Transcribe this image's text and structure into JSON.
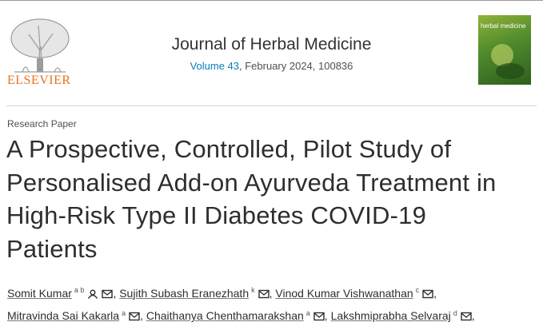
{
  "header": {
    "publisher": "ELSEVIER",
    "journal": "Journal of Herbal Medicine",
    "volume": "Volume 43",
    "issue_info": ", February 2024, 100836",
    "cover_title": "herbal medicine"
  },
  "article": {
    "type": "Research Paper",
    "title_lines": [
      "A Prospective, Controlled, Pilot Study of",
      "Personalised Add-on Ayurveda Treatment in",
      "High-Risk Type II Diabetes COVID-19",
      "Patients"
    ],
    "separator": ",",
    "authors": [
      {
        "name": "Somit Kumar",
        "affiliations": "a b",
        "profile_icon": true
      },
      {
        "name": "Sujith Subash Eranezhath",
        "affiliations": "k"
      },
      {
        "name": "Vinod Kumar Vishwanathan",
        "affiliations": "c"
      },
      {
        "name": "Mitravinda Sai Kakarla",
        "affiliations": "a"
      },
      {
        "name": "Chaithanya Chenthamarakshan",
        "affiliations": "a"
      },
      {
        "name": "Lakshmiprabha Selvaraj",
        "affiliations": "d"
      }
    ]
  }
}
